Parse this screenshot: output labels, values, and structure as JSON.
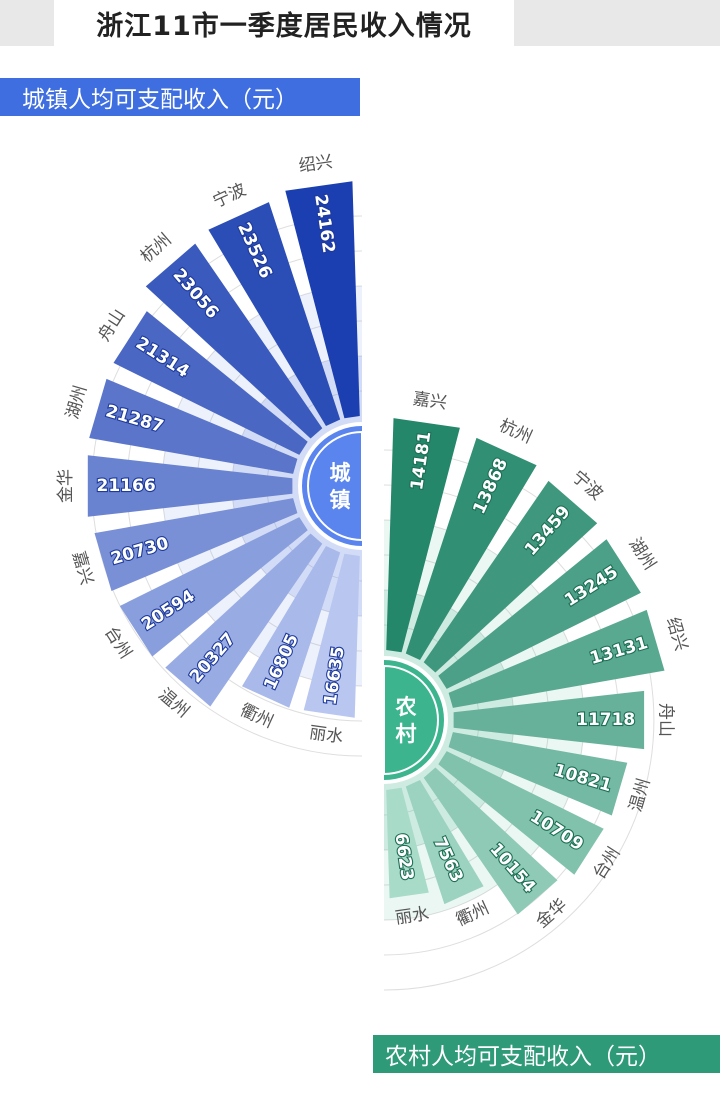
{
  "title": "浙江11市一季度居民收入情况",
  "chart_data": [
    {
      "type": "bar",
      "label": "城镇人均可支配收入（元）",
      "center_label": "城镇",
      "color_dark": "#1b3fb0",
      "color_light": "#b8c6f0",
      "categories": [
        "绍兴",
        "宁波",
        "杭州",
        "舟山",
        "湖州",
        "金华",
        "嘉兴",
        "台州",
        "温州",
        "衢州",
        "丽水"
      ],
      "values": [
        24162,
        23526,
        23056,
        21314,
        21287,
        21166,
        20730,
        20594,
        20327,
        16805,
        16635
      ]
    },
    {
      "type": "bar",
      "label": "农村人均可支配收入（元）",
      "center_label": "农村",
      "color_dark": "#24876a",
      "color_light": "#a9dbc9",
      "categories": [
        "嘉兴",
        "杭州",
        "宁波",
        "湖州",
        "绍兴",
        "舟山",
        "温州",
        "台州",
        "金华",
        "衢州",
        "丽水"
      ],
      "values": [
        14181,
        13868,
        13459,
        13245,
        13131,
        11718,
        10821,
        10709,
        10154,
        7563,
        6623
      ]
    }
  ]
}
